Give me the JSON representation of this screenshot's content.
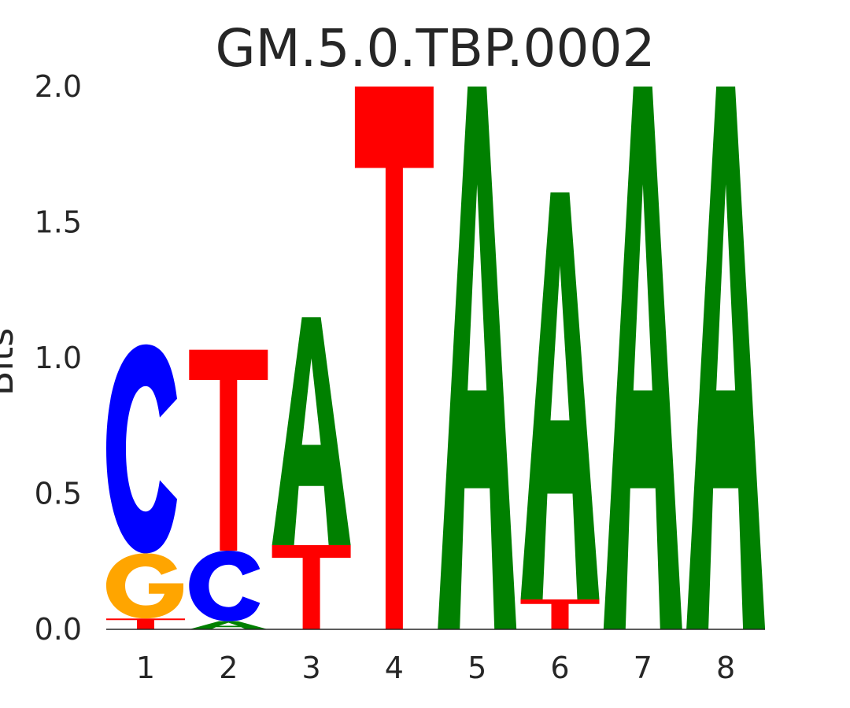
{
  "chart_data": {
    "type": "sequence-logo",
    "title": "GM.5.0.TBP.0002",
    "xlabel": "",
    "ylabel": "Bits",
    "ylim": [
      0,
      2
    ],
    "yticks": [
      "0.0",
      "0.5",
      "1.0",
      "1.5",
      "2.0"
    ],
    "positions": [
      "1",
      "2",
      "3",
      "4",
      "5",
      "6",
      "7",
      "8"
    ],
    "colors": {
      "A": "#008000",
      "C": "#0000ff",
      "G": "#ffa500",
      "T": "#ff0000"
    },
    "columns": [
      [
        {
          "letter": "T",
          "bits": 0.04
        },
        {
          "letter": "G",
          "bits": 0.24
        },
        {
          "letter": "C",
          "bits": 0.77
        }
      ],
      [
        {
          "letter": "A",
          "bits": 0.03
        },
        {
          "letter": "C",
          "bits": 0.26
        },
        {
          "letter": "T",
          "bits": 0.74
        }
      ],
      [
        {
          "letter": "T",
          "bits": 0.31
        },
        {
          "letter": "A",
          "bits": 0.84
        }
      ],
      [
        {
          "letter": "T",
          "bits": 2.0
        }
      ],
      [
        {
          "letter": "A",
          "bits": 2.0
        }
      ],
      [
        {
          "letter": "T",
          "bits": 0.11
        },
        {
          "letter": "A",
          "bits": 1.5
        }
      ],
      [
        {
          "letter": "A",
          "bits": 2.0
        }
      ],
      [
        {
          "letter": "A",
          "bits": 2.0
        }
      ]
    ]
  }
}
